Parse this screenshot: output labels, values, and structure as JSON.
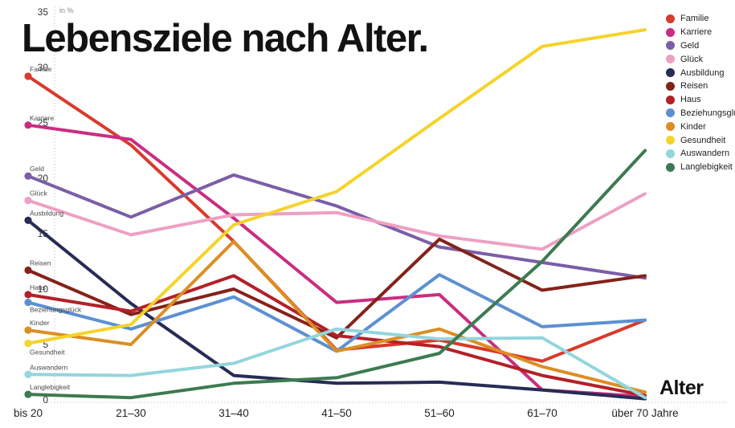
{
  "title": "Lebensziele nach Alter.",
  "y_axis": {
    "unit_label": "in %",
    "ticks": [
      0,
      5,
      10,
      15,
      20,
      25,
      30,
      35
    ]
  },
  "x_axis": {
    "title": "Alter"
  },
  "chart_data": {
    "type": "line",
    "title": "Lebensziele nach Alter.",
    "unit": "%",
    "ylim": [
      0,
      35
    ],
    "grid": "off",
    "legend_position": "right",
    "categories": [
      "bis 20",
      "21–30",
      "31–40",
      "41–50",
      "51–60",
      "61–70",
      "über 70 Jahre"
    ],
    "series": [
      {
        "name": "Familie",
        "color": "#d93a2b",
        "values": [
          29.2,
          23.0,
          14.3,
          4.5,
          5.4,
          3.5,
          7.2
        ]
      },
      {
        "name": "Karriere",
        "color": "#c92d81",
        "values": [
          24.8,
          23.5,
          16.4,
          8.8,
          9.5,
          0.9,
          0.3
        ]
      },
      {
        "name": "Geld",
        "color": "#7b5ea7",
        "values": [
          20.2,
          16.5,
          20.3,
          17.5,
          13.8,
          12.4,
          11.0
        ]
      },
      {
        "name": "Glück",
        "color": "#eda0c4",
        "values": [
          18.0,
          14.9,
          16.7,
          16.9,
          14.8,
          13.6,
          18.6
        ]
      },
      {
        "name": "Ausbildung",
        "color": "#272c55",
        "values": [
          16.2,
          8.7,
          2.2,
          1.5,
          1.6,
          0.9,
          0.1
        ]
      },
      {
        "name": "Reisen",
        "color": "#84221a",
        "values": [
          11.7,
          7.7,
          10.0,
          5.6,
          14.5,
          9.9,
          11.2
        ]
      },
      {
        "name": "Haus",
        "color": "#b32027",
        "values": [
          9.5,
          8.0,
          11.2,
          5.8,
          4.8,
          2.2,
          0.4
        ]
      },
      {
        "name": "Beziehungsglück",
        "color": "#5c90d2",
        "values": [
          8.8,
          6.4,
          9.3,
          4.4,
          11.3,
          6.6,
          7.2
        ]
      },
      {
        "name": "Kinder",
        "color": "#dc8e22",
        "values": [
          6.3,
          5.0,
          14.3,
          4.4,
          6.4,
          3.0,
          0.7
        ]
      },
      {
        "name": "Gesundheit",
        "color": "#f6d32b",
        "values": [
          5.1,
          6.8,
          15.8,
          18.8,
          25.4,
          31.9,
          33.4
        ]
      },
      {
        "name": "Auswandern",
        "color": "#93d5dd",
        "values": [
          2.3,
          2.2,
          3.3,
          6.4,
          5.5,
          5.6,
          0.2
        ]
      },
      {
        "name": "Langlebigkeit",
        "color": "#3d7a51",
        "values": [
          0.5,
          0.2,
          1.5,
          2.0,
          4.2,
          12.5,
          22.5
        ]
      }
    ]
  }
}
